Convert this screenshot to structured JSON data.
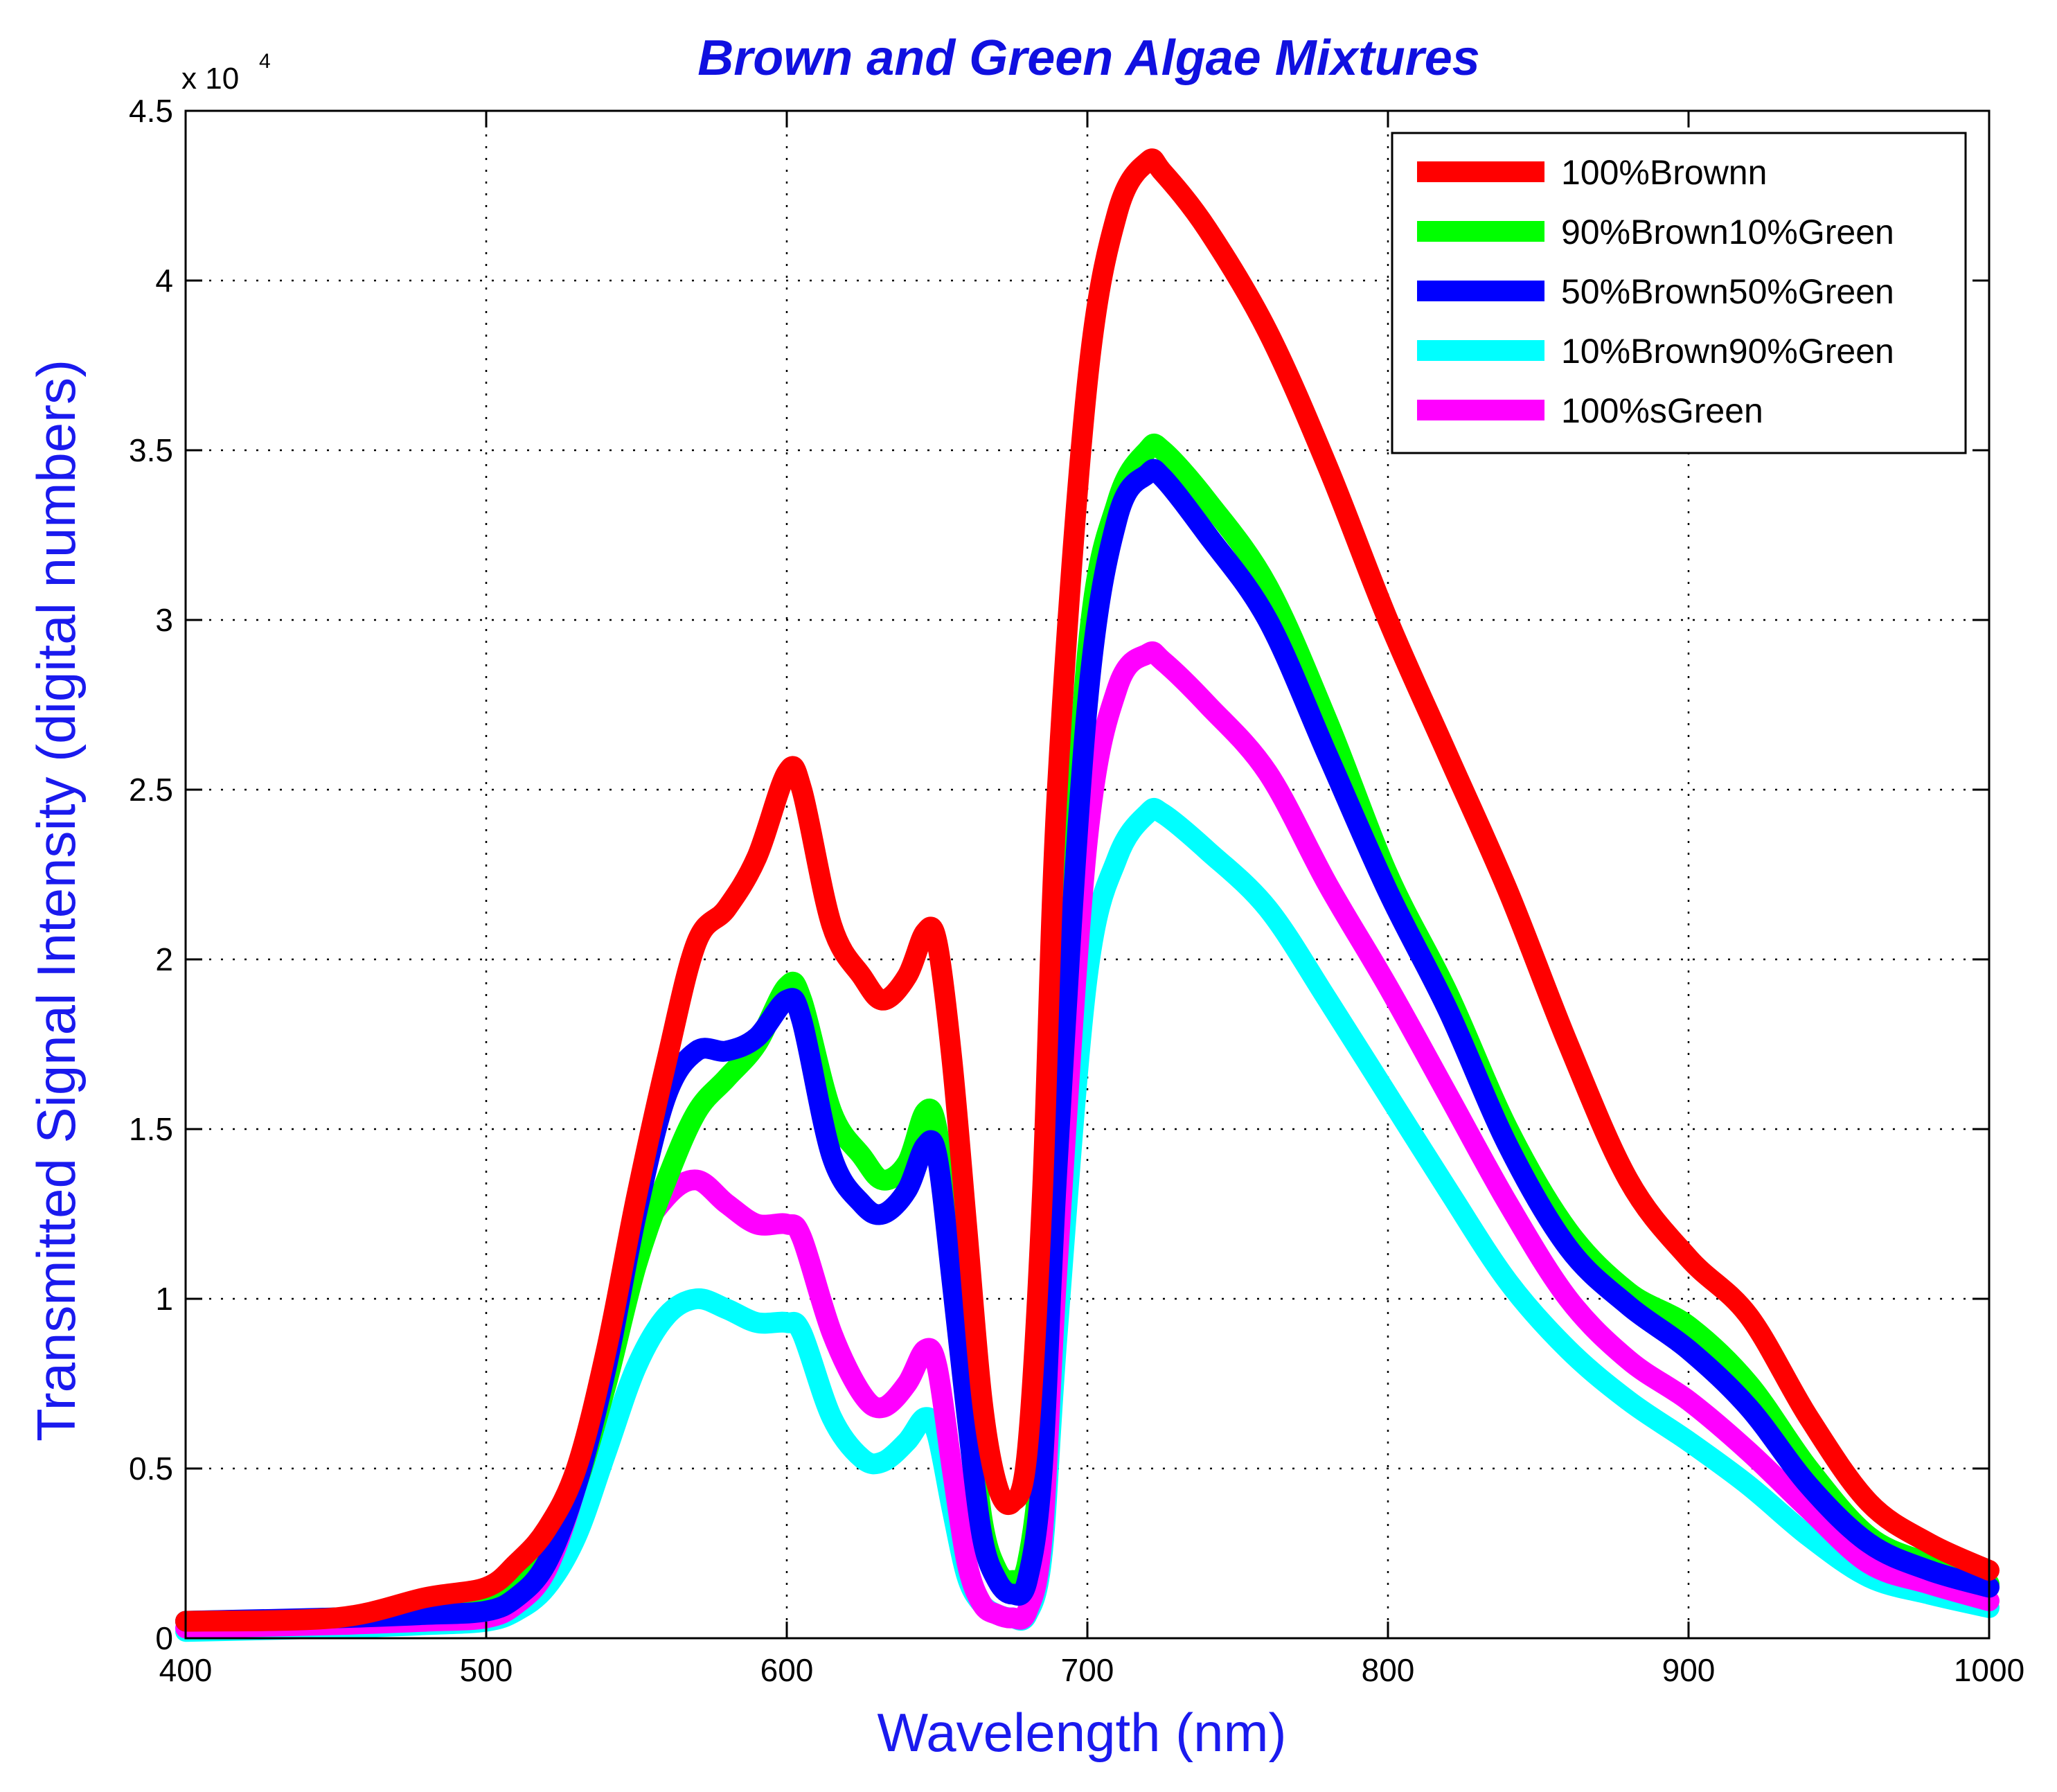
{
  "colors": {
    "title": "#1010e0",
    "axis_label": "#1a1aee",
    "axis": "#000000",
    "grid": "#000000",
    "background": "#ffffff"
  },
  "chart_data": {
    "type": "line",
    "title": "Brown and Green Algae Mixtures",
    "xlabel": "Wavelength (nm)",
    "ylabel": "Transmitted Signal Intensity (digital numbers)",
    "y_exponent": {
      "base": "x 10",
      "power": "4"
    },
    "xlim": [
      400,
      1000
    ],
    "ylim": [
      0,
      4.5
    ],
    "grid": true,
    "legend_position": "top-right",
    "x_ticks": [
      "400",
      "500",
      "600",
      "700",
      "800",
      "900",
      "1000"
    ],
    "y_ticks": [
      "0",
      "0.5",
      "1",
      "1.5",
      "2",
      "2.5",
      "3",
      "3.5",
      "4",
      "4.5"
    ],
    "x": [
      400,
      450,
      480,
      500,
      510,
      520,
      530,
      540,
      550,
      560,
      570,
      580,
      590,
      600,
      605,
      615,
      625,
      632,
      640,
      646,
      650,
      655,
      660,
      665,
      670,
      675,
      680,
      685,
      690,
      700,
      710,
      720,
      725,
      740,
      760,
      780,
      800,
      820,
      840,
      860,
      880,
      900,
      920,
      940,
      960,
      980,
      1000
    ],
    "series": [
      {
        "name": "100%Brownn",
        "color": "#ff0000",
        "values": [
          0.05,
          0.06,
          0.12,
          0.15,
          0.22,
          0.32,
          0.5,
          0.85,
          1.3,
          1.7,
          2.05,
          2.15,
          2.3,
          2.55,
          2.5,
          2.1,
          1.95,
          1.88,
          1.95,
          2.08,
          2.05,
          1.7,
          1.2,
          0.7,
          0.45,
          0.4,
          0.55,
          1.3,
          2.5,
          3.7,
          4.2,
          4.35,
          4.32,
          4.15,
          3.85,
          3.45,
          3.0,
          2.6,
          2.2,
          1.75,
          1.35,
          1.12,
          0.95,
          0.65,
          0.4,
          0.28,
          0.2
        ]
      },
      {
        "name": "90%Brown10%Green",
        "color": "#00ff00",
        "values": [
          0.05,
          0.06,
          0.08,
          0.1,
          0.15,
          0.25,
          0.45,
          0.75,
          1.1,
          1.35,
          1.55,
          1.65,
          1.75,
          1.92,
          1.88,
          1.55,
          1.42,
          1.35,
          1.4,
          1.55,
          1.5,
          1.15,
          0.75,
          0.35,
          0.2,
          0.17,
          0.22,
          0.6,
          1.5,
          2.9,
          3.35,
          3.5,
          3.5,
          3.35,
          3.1,
          2.7,
          2.25,
          1.9,
          1.5,
          1.2,
          1.02,
          0.92,
          0.75,
          0.5,
          0.3,
          0.22,
          0.16
        ]
      },
      {
        "name": "50%Brown50%Green",
        "color": "#0000ff",
        "values": [
          0.05,
          0.06,
          0.07,
          0.08,
          0.12,
          0.22,
          0.45,
          0.8,
          1.25,
          1.6,
          1.73,
          1.73,
          1.77,
          1.88,
          1.82,
          1.42,
          1.28,
          1.25,
          1.32,
          1.45,
          1.42,
          1.05,
          0.65,
          0.3,
          0.17,
          0.13,
          0.17,
          0.5,
          1.4,
          2.75,
          3.3,
          3.43,
          3.42,
          3.25,
          3.0,
          2.6,
          2.2,
          1.85,
          1.45,
          1.15,
          0.98,
          0.85,
          0.68,
          0.45,
          0.28,
          0.2,
          0.15
        ]
      },
      {
        "name": "10%Brown90%Green",
        "color": "#00ffff",
        "values": [
          0.02,
          0.03,
          0.04,
          0.05,
          0.08,
          0.15,
          0.3,
          0.55,
          0.8,
          0.95,
          1.0,
          0.97,
          0.93,
          0.93,
          0.9,
          0.65,
          0.53,
          0.52,
          0.58,
          0.65,
          0.6,
          0.38,
          0.18,
          0.1,
          0.07,
          0.06,
          0.07,
          0.25,
          0.9,
          1.95,
          2.3,
          2.43,
          2.43,
          2.32,
          2.15,
          1.88,
          1.6,
          1.32,
          1.05,
          0.85,
          0.7,
          0.58,
          0.45,
          0.3,
          0.18,
          0.13,
          0.09
        ]
      },
      {
        "name": "100%sGreen",
        "color": "#ff00ff",
        "values": [
          0.03,
          0.04,
          0.05,
          0.06,
          0.1,
          0.2,
          0.45,
          0.8,
          1.15,
          1.3,
          1.35,
          1.28,
          1.22,
          1.22,
          1.18,
          0.9,
          0.72,
          0.68,
          0.75,
          0.85,
          0.8,
          0.5,
          0.22,
          0.1,
          0.07,
          0.06,
          0.08,
          0.3,
          1.1,
          2.35,
          2.8,
          2.9,
          2.88,
          2.75,
          2.55,
          2.22,
          1.92,
          1.6,
          1.28,
          1.0,
          0.82,
          0.7,
          0.55,
          0.38,
          0.22,
          0.16,
          0.11
        ]
      }
    ]
  }
}
